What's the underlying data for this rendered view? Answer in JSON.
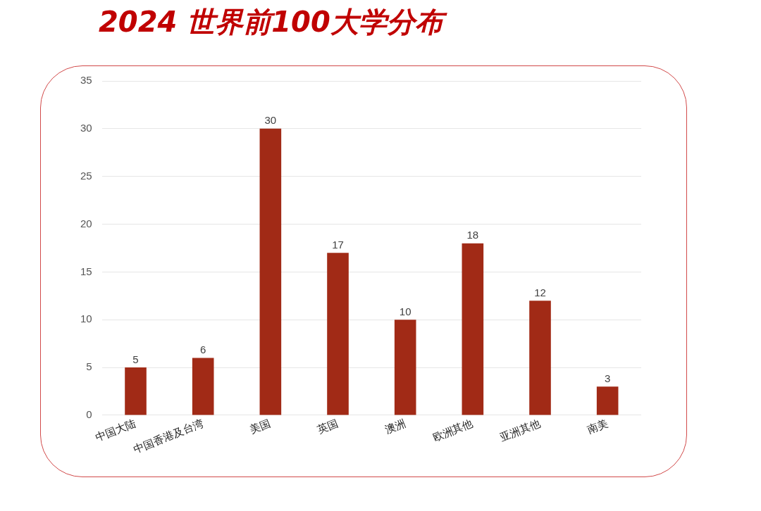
{
  "chart_data": {
    "type": "bar",
    "title": "2024 世界前100大学分布",
    "categories": [
      "中国大陆",
      "中国香港及台湾",
      "美国",
      "英国",
      "澳洲",
      "欧洲其他",
      "亚洲其他",
      "南美"
    ],
    "values": [
      5,
      6,
      30,
      17,
      10,
      18,
      12,
      3
    ],
    "color": "#a12a16",
    "ylim": [
      0,
      35
    ],
    "yticks": [
      0,
      5,
      10,
      15,
      20,
      25,
      30,
      35
    ],
    "grid": "y",
    "data_labels": true,
    "legend": false
  }
}
